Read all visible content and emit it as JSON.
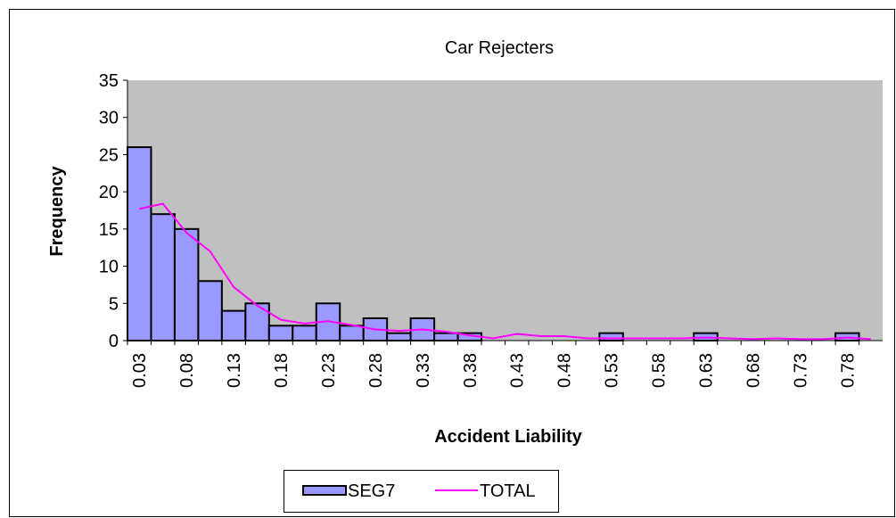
{
  "chart_data": {
    "type": "bar",
    "title": "Car Rejecters",
    "x_label": "Accident Liability",
    "y_label": "Frequency",
    "categories": [
      "0.03",
      null,
      "0.08",
      null,
      "0.13",
      null,
      "0.18",
      null,
      "0.23",
      null,
      "0.28",
      null,
      "0.33",
      null,
      "0.38",
      null,
      "0.43",
      null,
      "0.48",
      null,
      "0.53",
      null,
      "0.58",
      null,
      "0.63",
      null,
      "0.68",
      null,
      "0.73",
      null,
      "0.78",
      null
    ],
    "series": [
      {
        "name": "SEG7",
        "type": "bar",
        "color": "#9999ff",
        "values": [
          26,
          17,
          15,
          8,
          4,
          5,
          2,
          2,
          5,
          2,
          3,
          1,
          3,
          1,
          1,
          0,
          0,
          0,
          0,
          0,
          1,
          0,
          0,
          0,
          1,
          0,
          0,
          0,
          0,
          0,
          1,
          0
        ]
      },
      {
        "name": "TOTAL",
        "type": "line",
        "color": "#ff00ff",
        "values": [
          17.7,
          18.4,
          14.5,
          12,
          7.2,
          4.7,
          2.8,
          2.3,
          2.6,
          2.1,
          1.5,
          1.3,
          1.5,
          1.2,
          0.7,
          0.3,
          0.9,
          0.6,
          0.6,
          0.3,
          0.3,
          0.3,
          0.3,
          0.3,
          0.4,
          0.3,
          0.2,
          0.3,
          0.2,
          0.2,
          0.4,
          0.2
        ]
      }
    ],
    "ylim": [
      0,
      35
    ],
    "yticks": [
      0,
      5,
      10,
      15,
      20,
      25,
      30,
      35
    ],
    "plot_background": "#c0c0c0",
    "grid": false,
    "legend": "bottom"
  }
}
